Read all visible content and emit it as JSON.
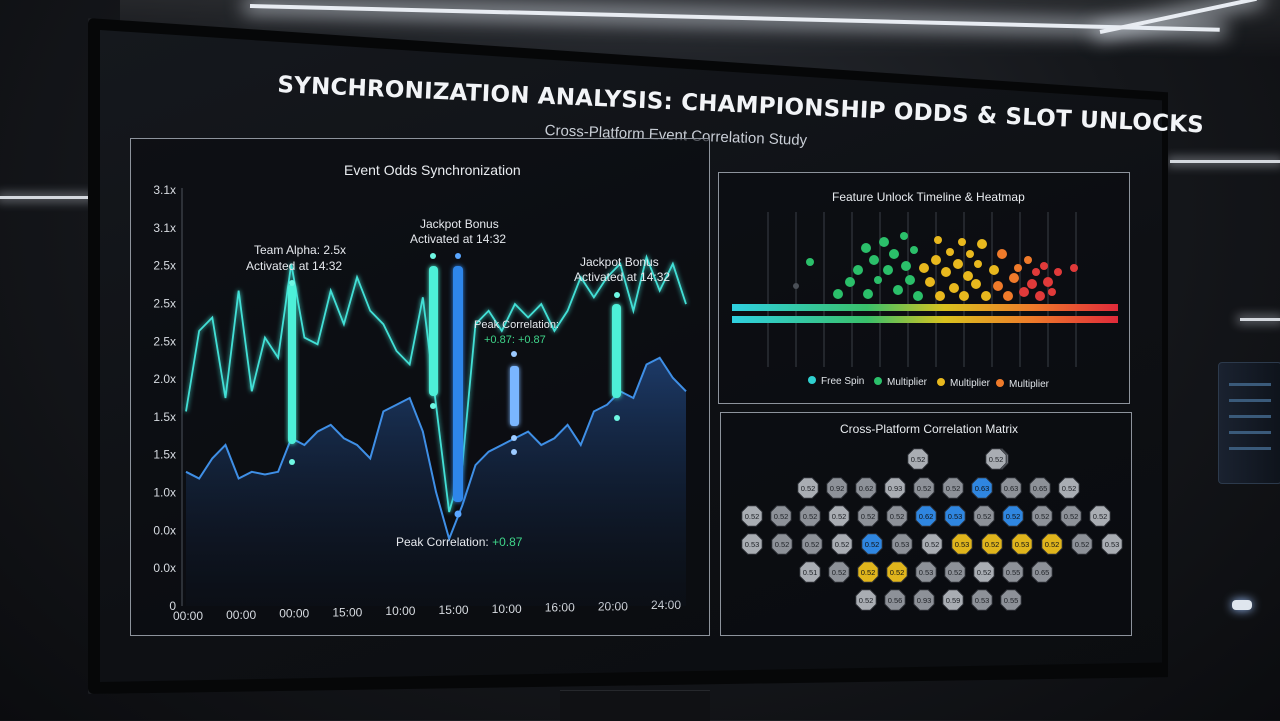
{
  "header": {
    "title": "SYNCHRONIZATION ANALYSIS: CHAMPIONSHIP ODDS & SLOT UNLOCKS",
    "subtitle": "Cross-Platform Event Correlation Study"
  },
  "colors": {
    "cyan_line": "#43e0d6",
    "blue_line": "#3f8fe6",
    "green": "#2bbf6a",
    "yellow": "#e8b81e",
    "orange": "#ef7a2a",
    "red": "#e03a3a",
    "matrix_blue": "#2f86e0",
    "matrix_gold": "#e0b51c"
  },
  "odds_panel": {
    "title": "Event Odds Synchronization",
    "annotations": [
      {
        "label_line1": "Team Alpha: 2.5x",
        "label_line2": "Activated at 14:32"
      },
      {
        "label_line1": "Jackpot Bonus",
        "label_line2": "Activated at 14:32"
      },
      {
        "label_line1": "Peak Correlation:",
        "label_line2": "+0.87: +0.87"
      },
      {
        "label_line1": "Jackpot Bonus",
        "label_line2": "Activated at 14:32"
      }
    ],
    "bottom_annotation": {
      "label": "Peak Correlation:",
      "value": "+0.87"
    }
  },
  "chart_data": {
    "type": "line",
    "title": "Event Odds Synchronization",
    "y_tick_labels": [
      "3.1x",
      "3.1x",
      "2.5x",
      "2.5x",
      "2.5x",
      "2.0x",
      "1.5x",
      "1.5x",
      "1.0x",
      "0.0x",
      "0.0x",
      "0"
    ],
    "x_tick_labels": [
      "00:00",
      "00:00",
      "00:00",
      "15:00",
      "10:00",
      "15:00",
      "10:00",
      "16:00",
      "20:00",
      "24:00"
    ],
    "ylim": [
      0,
      3.1
    ],
    "series": [
      {
        "values": [
          1.45,
          2.05,
          2.15,
          1.55,
          2.35,
          1.6,
          2.0,
          1.85,
          2.55,
          2.0,
          1.95,
          2.35,
          2.1,
          2.45,
          2.2,
          2.1,
          1.9,
          1.8,
          2.3,
          1.5,
          0.7,
          1.05,
          2.1,
          2.2,
          2.05,
          2.25,
          2.15,
          2.25,
          2.05,
          2.2,
          2.45,
          2.3,
          2.45,
          2.55,
          2.2,
          2.6,
          2.35,
          2.55,
          2.25
        ]
      },
      {
        "values": [
          1.0,
          0.95,
          1.1,
          1.2,
          0.95,
          1.0,
          0.98,
          1.0,
          1.25,
          1.2,
          1.3,
          1.35,
          1.25,
          1.2,
          1.1,
          1.45,
          1.5,
          1.55,
          1.3,
          0.85,
          0.5,
          0.75,
          1.05,
          1.15,
          1.2,
          1.25,
          1.3,
          1.2,
          1.25,
          1.35,
          1.2,
          1.45,
          1.5,
          1.6,
          1.55,
          1.8,
          1.85,
          1.7,
          1.6
        ]
      }
    ]
  },
  "unlock_panel": {
    "title": "Feature Unlock Timeline & Heatmap",
    "legend": [
      {
        "label": "Free Spin",
        "color": "#2fd0d0"
      },
      {
        "label": "Multiplier",
        "color": "#2bbf6a"
      },
      {
        "label": "Multiplier",
        "color": "#e8b81e"
      },
      {
        "label": "Multiplier",
        "color": "#ef7a2a"
      }
    ]
  },
  "matrix_panel": {
    "title": "Cross-Platform Correlation Matrix",
    "rows": [
      [
        "gray:0.52",
        "empty",
        "gray:0.52",
        "gray:0.52"
      ],
      [
        "gray:0.52",
        "gray:0.92",
        "gray:0.62",
        "gray:0.93",
        "gray:0.52",
        "gray:0.52",
        "blue:0.63",
        "gray:0.63",
        "gray:0.65",
        "gray:0.52"
      ],
      [
        "gray:0.52",
        "gray:0.52",
        "gray:0.52",
        "gray:0.52",
        "gray:0.52",
        "gray:0.52",
        "blue:0.62",
        "blue:0.53",
        "gray:0.52",
        "blue:0.52",
        "gray:0.52",
        "gray:0.52",
        "gray:0.52"
      ],
      [
        "gray:0.53",
        "gray:0.52",
        "gray:0.52",
        "gray:0.52",
        "blue:0.52",
        "gray:0.53",
        "gray:0.52",
        "gold:0.53",
        "gold:0.52",
        "gold:0.53",
        "gold:0.52",
        "gray:0.52",
        "gray:0.53",
        "gold:0.52"
      ],
      [
        "gray:0.51",
        "gray:0.52",
        "gold:0.52",
        "gold:0.52",
        "gray:0.53",
        "gray:0.52",
        "gray:0.52",
        "gray:0.55",
        "gray:0.65"
      ],
      [
        "gray:0.52",
        "gray:0.56",
        "gray:0.93",
        "gray:0.59",
        "gray:0.53",
        "gray:0.55"
      ]
    ]
  }
}
